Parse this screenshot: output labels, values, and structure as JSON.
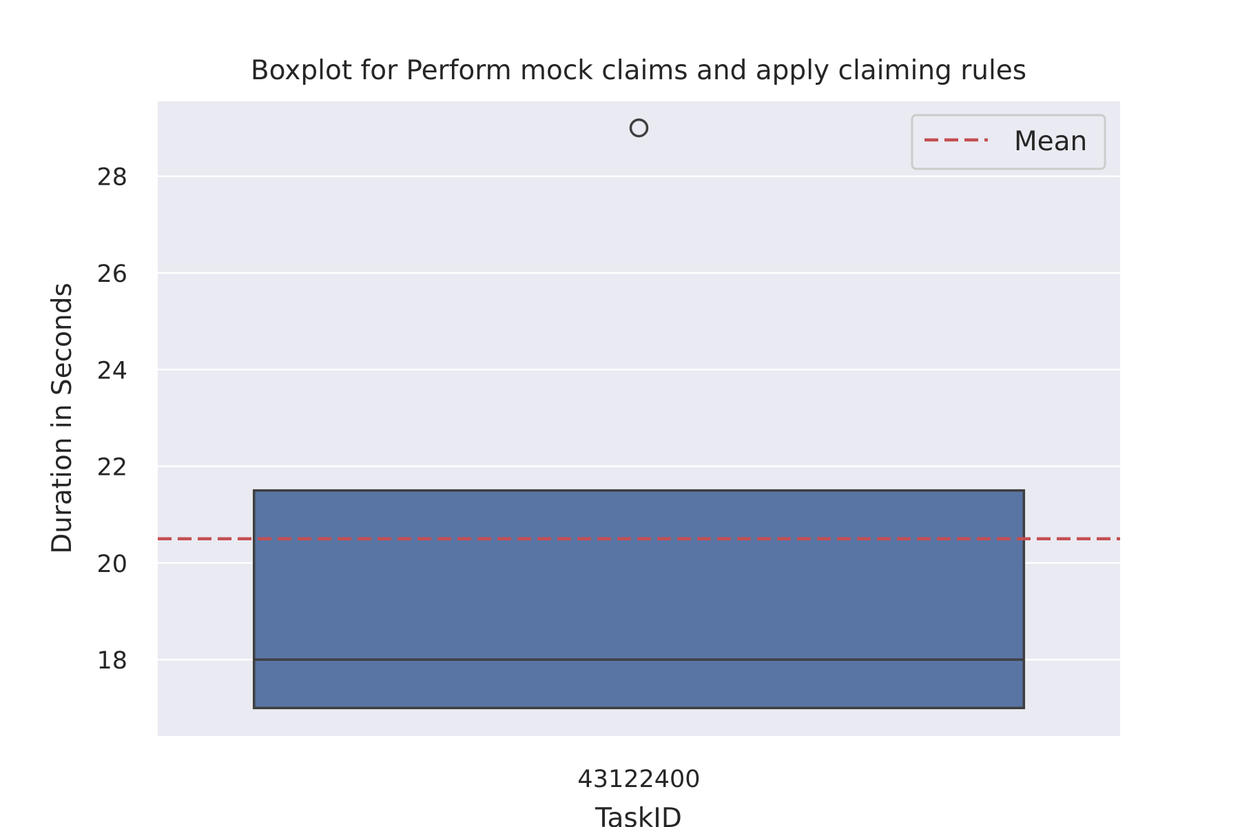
{
  "chart_data": {
    "type": "box",
    "title": "Boxplot for Perform mock claims and apply claiming rules",
    "xlabel": "TaskID",
    "ylabel": "Duration in Seconds",
    "categories": [
      "43122400"
    ],
    "ylim": [
      16.42,
      29.55
    ],
    "yticks": [
      18,
      20,
      22,
      24,
      26,
      28
    ],
    "ytick_labels": [
      "18",
      "20",
      "22",
      "24",
      "26",
      "28"
    ],
    "boxes": [
      {
        "category": "43122400",
        "whisker_low": 17,
        "q1": 17,
        "median": 18,
        "q3": 21.5,
        "whisker_high": 21.5,
        "outliers": [
          29
        ]
      }
    ],
    "mean_line": {
      "value": 20.5,
      "label": "Mean"
    },
    "legend": {
      "placement": "top-right",
      "entries": [
        "Mean"
      ]
    },
    "grid": true,
    "colors": {
      "background": "#eaeaf2",
      "grid": "#ffffff",
      "box_fill": "#5975a4",
      "box_edge": "#3f3f3f",
      "mean_line": "#c44e52",
      "text": "#262626",
      "legend_border": "#cccccc"
    }
  }
}
